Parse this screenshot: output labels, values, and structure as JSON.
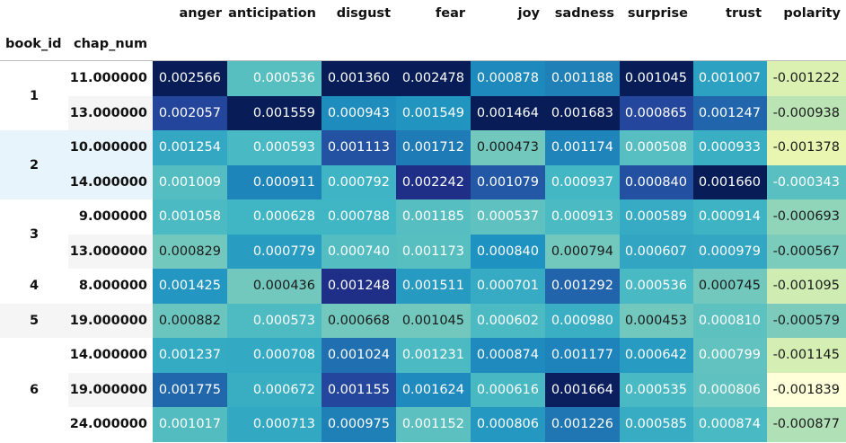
{
  "chart_data": {
    "type": "table",
    "title": "",
    "index_names": [
      "book_id",
      "chap_num"
    ],
    "columns": [
      "anger",
      "anticipation",
      "disgust",
      "fear",
      "joy",
      "sadness",
      "surprise",
      "trust",
      "polarity"
    ],
    "groups": [
      {
        "book_id": "1",
        "rows": [
          {
            "chap_num": "11.000000",
            "values": [
              "0.002566",
              "0.000536",
              "0.001360",
              "0.002478",
              "0.000878",
              "0.001188",
              "0.001045",
              "0.001007",
              "-0.001222"
            ]
          },
          {
            "chap_num": "13.000000",
            "values": [
              "0.002057",
              "0.001559",
              "0.000943",
              "0.001549",
              "0.001464",
              "0.001683",
              "0.000865",
              "0.001247",
              "-0.000938"
            ]
          }
        ]
      },
      {
        "book_id": "2",
        "rows": [
          {
            "chap_num": "10.000000",
            "values": [
              "0.001254",
              "0.000593",
              "0.001113",
              "0.001712",
              "0.000473",
              "0.001174",
              "0.000508",
              "0.000933",
              "-0.001378"
            ]
          },
          {
            "chap_num": "14.000000",
            "values": [
              "0.001009",
              "0.000911",
              "0.000792",
              "0.002242",
              "0.001079",
              "0.000937",
              "0.000840",
              "0.001660",
              "-0.000343"
            ]
          }
        ]
      },
      {
        "book_id": "3",
        "rows": [
          {
            "chap_num": "9.000000",
            "values": [
              "0.001058",
              "0.000628",
              "0.000788",
              "0.001185",
              "0.000537",
              "0.000913",
              "0.000589",
              "0.000914",
              "-0.000693"
            ]
          },
          {
            "chap_num": "13.000000",
            "values": [
              "0.000829",
              "0.000779",
              "0.000740",
              "0.001173",
              "0.000840",
              "0.000794",
              "0.000607",
              "0.000979",
              "-0.000567"
            ]
          }
        ]
      },
      {
        "book_id": "4",
        "rows": [
          {
            "chap_num": "8.000000",
            "values": [
              "0.001425",
              "0.000436",
              "0.001248",
              "0.001511",
              "0.000701",
              "0.001292",
              "0.000536",
              "0.000745",
              "-0.001095"
            ]
          }
        ]
      },
      {
        "book_id": "5",
        "rows": [
          {
            "chap_num": "19.000000",
            "values": [
              "0.000882",
              "0.000573",
              "0.000668",
              "0.001045",
              "0.000602",
              "0.000980",
              "0.000453",
              "0.000810",
              "-0.000579"
            ]
          }
        ]
      },
      {
        "book_id": "6",
        "rows": [
          {
            "chap_num": "14.000000",
            "values": [
              "0.001237",
              "0.000708",
              "0.001024",
              "0.001231",
              "0.000874",
              "0.001177",
              "0.000642",
              "0.000799",
              "-0.001145"
            ]
          },
          {
            "chap_num": "19.000000",
            "values": [
              "0.001775",
              "0.000672",
              "0.001155",
              "0.001624",
              "0.000616",
              "0.001664",
              "0.000535",
              "0.000806",
              "-0.001839"
            ]
          },
          {
            "chap_num": "24.000000",
            "values": [
              "0.001017",
              "0.000713",
              "0.000975",
              "0.001152",
              "0.000806",
              "0.001226",
              "0.000585",
              "0.000874",
              "-0.000877"
            ]
          }
        ]
      }
    ],
    "colormap": "YlGnBu",
    "colormap_stops": [
      "#ffffd9",
      "#edf8b1",
      "#c7e9b4",
      "#7fcdbb",
      "#41b6c4",
      "#1d91c0",
      "#225ea8",
      "#253494",
      "#081d58"
    ],
    "hover_row_color": "#e8f4fb",
    "stripe_row_color": "#f5f5f5"
  }
}
